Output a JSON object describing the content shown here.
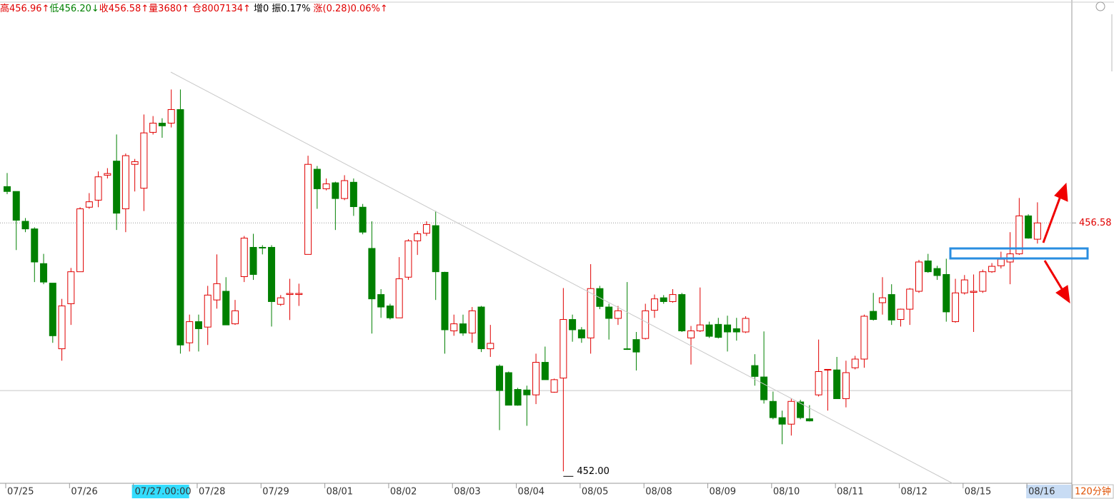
{
  "info_bar": [
    {
      "text": "高456.96↑",
      "color": "#e00000"
    },
    {
      "text": "低456.20↓",
      "color": "#008000"
    },
    {
      "text": "收456.58↑",
      "color": "#e00000"
    },
    {
      "text": "量3680↑",
      "color": "#e00000"
    },
    {
      "text": "仓8007134↑",
      "color": "#e00000"
    },
    {
      "text": "增0",
      "color": "#000000"
    },
    {
      "text": "振0.17%",
      "color": "#000000"
    },
    {
      "text": "涨(0.28)0.06%↑",
      "color": "#e00000"
    }
  ],
  "period": "120分钟",
  "chart_data": {
    "type": "candlestick",
    "categories": [
      "07/25",
      null,
      null,
      null,
      null,
      null,
      null,
      "07/26",
      null,
      null,
      null,
      null,
      null,
      null,
      "07/27.00:00",
      null,
      null,
      null,
      null,
      null,
      null,
      "07/28",
      null,
      null,
      null,
      null,
      null,
      null,
      "07/29",
      null,
      null,
      null,
      null,
      null,
      null,
      "08/01",
      null,
      null,
      null,
      null,
      null,
      null,
      "08/02",
      null,
      null,
      null,
      null,
      null,
      null,
      "08/03",
      null,
      null,
      null,
      null,
      null,
      null,
      "08/04",
      null,
      null,
      null,
      null,
      null,
      null,
      "08/05",
      null,
      null,
      null,
      null,
      null,
      null,
      "08/08",
      null,
      null,
      null,
      null,
      null,
      null,
      "08/09",
      null,
      null,
      null,
      null,
      null,
      null,
      "08/10",
      null,
      null,
      null,
      null,
      null,
      null,
      "08/11",
      null,
      null,
      null,
      null,
      null,
      null,
      "08/12",
      null,
      null,
      null,
      null,
      null,
      null,
      "08/15",
      null,
      null,
      null,
      null,
      null,
      null,
      "08/16",
      null
    ],
    "open": [
      457.25,
      457.16,
      456.61,
      456.47,
      455.83,
      455.47,
      454.26,
      455.09,
      455.68,
      456.87,
      457.0,
      457.46,
      457.72,
      456.84,
      457.66,
      457.22,
      458.25,
      458.42,
      458.42,
      458.67,
      454.37,
      454.76,
      454.66,
      455.16,
      455.32,
      454.72,
      455.59,
      456.13,
      456.13,
      456.13,
      455.08,
      455.26,
      455.26,
      456.0,
      457.57,
      457.21,
      457.32,
      457.03,
      457.33,
      456.87,
      456.11,
      455.26,
      455.05,
      454.83,
      455.58,
      456.25,
      456.39,
      456.53,
      455.67,
      454.59,
      454.72,
      454.55,
      455.03,
      454.26,
      453.94,
      453.82,
      453.51,
      453.5,
      453.41,
      454.01,
      453.46,
      453.72,
      454.8,
      454.61,
      454.46,
      455.37,
      455.03,
      454.82,
      454.26,
      454.43,
      454.45,
      454.97,
      455.2,
      455.13,
      455.26,
      454.46,
      454.59,
      454.7,
      454.71,
      454.7,
      454.63,
      454.57,
      453.95,
      453.74,
      453.29,
      452.99,
      452.87,
      453.28,
      452.97,
      453.41,
      453.87,
      453.87,
      453.34,
      453.91,
      454.07,
      454.95,
      455.11,
      455.26,
      454.8,
      454.99,
      455.32,
      455.88,
      455.74,
      455.63,
      454.76,
      455.29,
      455.3,
      455.32,
      455.68,
      455.79,
      455.86,
      456.01,
      456.71,
      456.28
    ],
    "high": [
      457.5,
      457.16,
      456.67,
      456.5,
      456.01,
      455.47,
      455.18,
      455.75,
      456.87,
      457.13,
      457.53,
      457.59,
      458.21,
      457.86,
      457.76,
      458.58,
      458.55,
      458.51,
      459.04,
      459.04,
      454.89,
      454.89,
      455.42,
      456.0,
      455.58,
      455.16,
      456.34,
      456.38,
      456.17,
      456.17,
      455.25,
      455.55,
      455.46,
      457.82,
      457.63,
      457.4,
      457.34,
      457.46,
      457.4,
      456.93,
      456.61,
      455.36,
      455.09,
      455.95,
      456.28,
      456.43,
      456.61,
      456.8,
      455.68,
      454.89,
      454.89,
      455.03,
      455.05,
      454.7,
      453.97,
      453.84,
      453.54,
      453.58,
      454.17,
      454.3,
      453.71,
      455.38,
      454.89,
      454.66,
      455.82,
      455.42,
      455.09,
      455.05,
      455.49,
      454.57,
      455.09,
      455.26,
      455.25,
      455.36,
      455.29,
      454.68,
      455.39,
      454.76,
      454.83,
      454.87,
      454.83,
      454.86,
      454.16,
      454.58,
      453.47,
      453.12,
      453.34,
      453.32,
      453.22,
      454.43,
      453.88,
      454.11,
      454.04,
      454.13,
      454.89,
      455.29,
      455.58,
      455.45,
      455.0,
      455.38,
      455.9,
      456.01,
      455.79,
      455.92,
      455.55,
      455.62,
      455.63,
      455.72,
      455.84,
      456.05,
      456.41,
      457.04,
      456.74,
      456.96
    ],
    "low": [
      457.11,
      456.08,
      456.41,
      455.49,
      455.45,
      454.37,
      454.04,
      454.7,
      455.68,
      456.84,
      456.87,
      457.4,
      456.45,
      456.41,
      457.16,
      456.8,
      458.21,
      458.15,
      458.34,
      454.17,
      454.21,
      454.21,
      454.33,
      455.0,
      454.7,
      454.7,
      455.49,
      455.53,
      456.0,
      454.67,
      455.05,
      454.79,
      455.05,
      456.0,
      456.84,
      457.18,
      456.45,
      457.0,
      456.71,
      456.37,
      454.54,
      454.83,
      454.8,
      454.83,
      455.53,
      455.99,
      456.34,
      455.16,
      454.17,
      454.5,
      454.5,
      454.37,
      454.2,
      454.11,
      452.76,
      453.22,
      453.21,
      452.84,
      453.24,
      453.69,
      453.45,
      452.0,
      454.39,
      454.37,
      454.17,
      454.99,
      454.43,
      454.7,
      454.24,
      453.86,
      454.43,
      454.83,
      455.09,
      455.11,
      454.57,
      453.97,
      454.57,
      454.46,
      454.45,
      454.21,
      454.41,
      454.55,
      453.58,
      453.25,
      452.96,
      452.5,
      452.66,
      452.96,
      452.92,
      453.38,
      453.12,
      453.34,
      453.18,
      453.88,
      453.91,
      454.78,
      454.89,
      454.7,
      454.67,
      454.7,
      455.29,
      455.66,
      455.53,
      454.76,
      454.74,
      455.26,
      454.57,
      455.29,
      455.66,
      455.74,
      455.45,
      455.99,
      456.29,
      456.2
    ],
    "close": [
      457.16,
      456.63,
      456.47,
      455.86,
      455.49,
      454.5,
      455.05,
      455.68,
      456.84,
      456.97,
      457.43,
      457.49,
      456.76,
      457.82,
      457.71,
      458.24,
      458.42,
      458.37,
      458.67,
      454.33,
      454.76,
      454.63,
      455.25,
      455.46,
      454.7,
      454.96,
      456.3,
      455.63,
      456.12,
      455.13,
      455.2,
      455.28,
      455.28,
      457.66,
      457.21,
      457.3,
      457.03,
      457.36,
      456.88,
      456.41,
      455.18,
      455.03,
      454.83,
      455.55,
      456.25,
      456.38,
      456.55,
      455.68,
      454.61,
      454.72,
      454.55,
      454.96,
      454.26,
      454.36,
      453.49,
      453.22,
      453.22,
      453.41,
      454.01,
      453.69,
      453.69,
      454.8,
      454.61,
      454.46,
      455.37,
      455.04,
      454.82,
      454.96,
      454.25,
      454.2,
      454.96,
      455.18,
      455.13,
      455.26,
      454.59,
      454.59,
      454.7,
      454.49,
      454.47,
      454.57,
      454.57,
      454.82,
      453.75,
      453.32,
      452.99,
      452.87,
      453.29,
      452.99,
      452.93,
      453.84,
      453.88,
      453.34,
      453.82,
      454.07,
      454.86,
      454.8,
      455.2,
      454.79,
      454.99,
      455.36,
      455.86,
      455.68,
      455.61,
      454.94,
      455.29,
      455.53,
      455.32,
      455.68,
      455.78,
      455.91,
      456.01,
      456.71,
      456.3,
      456.58
    ],
    "up_color": "#e00000",
    "down_color": "#008000",
    "ylim": [
      451.78,
      460.69
    ],
    "reference_line": 453.49,
    "annotation": {
      "value": 452.0,
      "label": "452.00"
    },
    "cursor_index": 14
  }
}
